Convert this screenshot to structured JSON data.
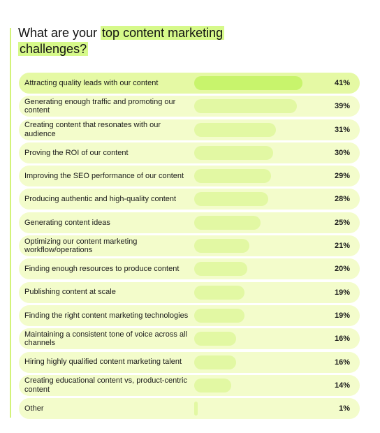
{
  "title_pre": "What are your ",
  "title_highlight_1": "top content marketing",
  "title_highlight_2": "challenges?",
  "colors": {
    "highlight": "#d6f98a",
    "row_bg": "#f3fccb",
    "bar": "#e2f8a3",
    "top_bar": "#c8f46c"
  },
  "chart_data": {
    "type": "bar",
    "orientation": "horizontal",
    "title": "What are your top content marketing challenges?",
    "value_unit": "%",
    "categories": [
      "Attracting quality leads with our content",
      "Generating enough traffic and promoting our content",
      "Creating content that resonates with our audience",
      "Proving the ROI of our content",
      "Improving the SEO performance of our content",
      "Producing authentic and high-quality content",
      "Generating content ideas",
      "Optimizing our content marketing workflow/operations",
      "Finding enough resources to produce content",
      "Publishing content at scale",
      "Finding the right content marketing technologies",
      "Maintaining a consistent tone of voice across all channels",
      "Hiring highly qualified content marketing talent",
      "Creating educational content vs, product-centric content",
      "Other"
    ],
    "values": [
      41,
      39,
      31,
      30,
      29,
      28,
      25,
      21,
      20,
      19,
      19,
      16,
      16,
      14,
      1
    ],
    "value_labels": [
      "41%",
      "39%",
      "31%",
      "30%",
      "29%",
      "28%",
      "25%",
      "21%",
      "20%",
      "19%",
      "19%",
      "16%",
      "16%",
      "14%",
      "1%"
    ],
    "xlim": [
      0,
      41
    ]
  }
}
